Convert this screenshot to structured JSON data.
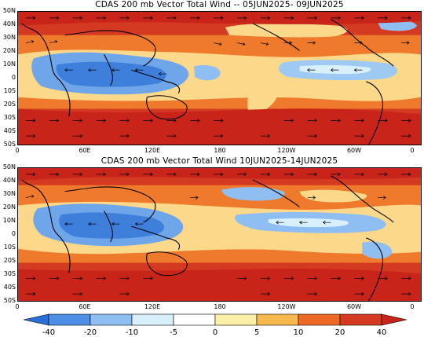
{
  "panels": [
    {
      "title": "CDAS 200 mb Vector Total Wind -- 05JUN2025- 09JUN2025",
      "lat_labels": [
        "50N",
        "40N",
        "30N",
        "20N",
        "10N",
        "0",
        "10S",
        "20S",
        "30S",
        "40S",
        "50S"
      ],
      "lon_labels": [
        "0",
        "60E",
        "120E",
        "180",
        "120W",
        "60W",
        "0"
      ]
    },
    {
      "title": "CDAS 200 mb Vector Total Wind 10JUN2025-14JUN2025",
      "lat_labels": [
        "50N",
        "40N",
        "30N",
        "20N",
        "10N",
        "0",
        "10S",
        "20S",
        "30S",
        "40S",
        "50S"
      ],
      "lon_labels": [
        "0",
        "60E",
        "120E",
        "180",
        "120W",
        "60W",
        "0"
      ]
    }
  ],
  "colorbar": {
    "labels": [
      "-40",
      "-20",
      "-10",
      "-5",
      "0",
      "5",
      "10",
      "20",
      "40"
    ],
    "colors": [
      "#2a6fd6",
      "#4d8fe6",
      "#8fbff2",
      "#d8f0fb",
      "#ffffff",
      "#fcefa8",
      "#f7b84e",
      "#ee6a24",
      "#c8241a"
    ]
  },
  "vector_color": "#000000",
  "coast_color": "#000000"
}
